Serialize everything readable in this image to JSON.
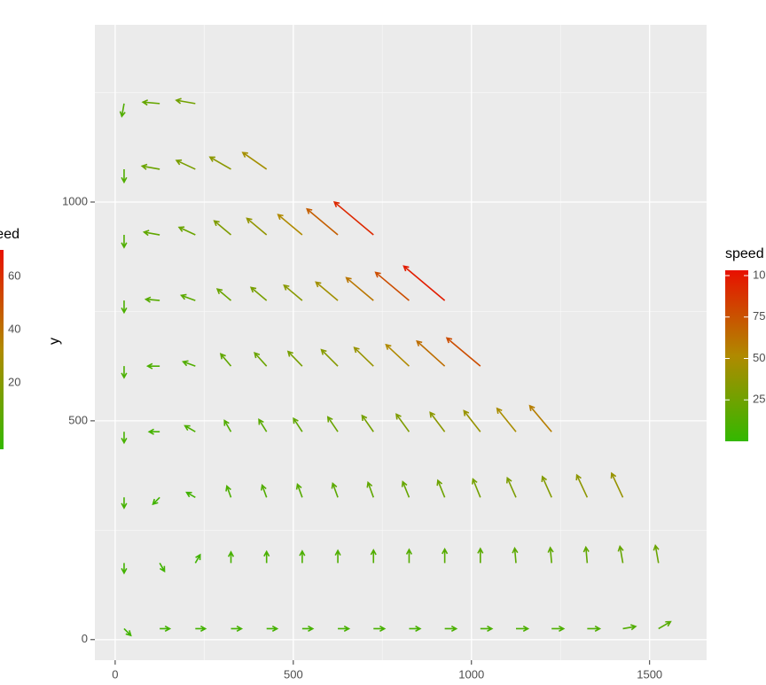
{
  "chart_data": {
    "type": "vector",
    "y_label": "y",
    "xlim": [
      -57,
      1660
    ],
    "ylim": [
      -47,
      1405
    ],
    "xticks": [
      0,
      500,
      1000,
      1500
    ],
    "yticks": [
      0,
      500,
      1000
    ],
    "x_minor_breaks": [
      250,
      750,
      1250
    ],
    "y_minor_breaks": [
      250,
      750,
      1250
    ],
    "grid": true,
    "x": [
      25,
      125,
      225,
      325,
      425,
      525,
      625,
      725,
      825,
      925,
      1025,
      1125,
      1225,
      1325,
      1425,
      1525,
      25,
      125,
      225,
      325,
      425,
      525,
      625,
      725,
      825,
      925,
      1025,
      1125,
      1225,
      1325,
      1425,
      1525,
      25,
      125,
      225,
      325,
      425,
      525,
      625,
      725,
      825,
      925,
      1025,
      1125,
      1225,
      1325,
      1425,
      25,
      125,
      225,
      325,
      425,
      525,
      625,
      725,
      825,
      925,
      1025,
      1125,
      1225,
      25,
      125,
      225,
      325,
      425,
      525,
      625,
      725,
      825,
      925,
      1025,
      25,
      125,
      225,
      325,
      425,
      525,
      625,
      725,
      825,
      925,
      25,
      125,
      225,
      325,
      425,
      525,
      625,
      725,
      25,
      125,
      225,
      325,
      425,
      25,
      125,
      225
    ],
    "y": [
      25,
      25,
      25,
      25,
      25,
      25,
      25,
      25,
      25,
      25,
      25,
      25,
      25,
      25,
      25,
      25,
      175,
      175,
      175,
      175,
      175,
      175,
      175,
      175,
      175,
      175,
      175,
      175,
      175,
      175,
      175,
      175,
      325,
      325,
      325,
      325,
      325,
      325,
      325,
      325,
      325,
      325,
      325,
      325,
      325,
      325,
      325,
      475,
      475,
      475,
      475,
      475,
      475,
      475,
      475,
      475,
      475,
      475,
      475,
      475,
      625,
      625,
      625,
      625,
      625,
      625,
      625,
      625,
      625,
      625,
      625,
      775,
      775,
      775,
      775,
      775,
      775,
      775,
      775,
      775,
      775,
      925,
      925,
      925,
      925,
      925,
      925,
      925,
      925,
      1075,
      1075,
      1075,
      1075,
      1075,
      1225,
      1225,
      1225
    ],
    "angle": [
      -45,
      0,
      0,
      0,
      0,
      0,
      0,
      0,
      0,
      0,
      0,
      0,
      0,
      0,
      10,
      30,
      -90,
      -60,
      60,
      90,
      90,
      90,
      90,
      90,
      90,
      90,
      90,
      95,
      95,
      95,
      100,
      100,
      -90,
      -135,
      150,
      110,
      110,
      110,
      110,
      110,
      112,
      112,
      112,
      114,
      114,
      115,
      115,
      -90,
      180,
      150,
      120,
      122,
      123,
      124,
      125,
      126,
      127,
      128,
      129,
      130,
      -90,
      180,
      160,
      130,
      132,
      134,
      135,
      136,
      137,
      138,
      140,
      -90,
      175,
      160,
      140,
      140,
      140,
      140,
      140,
      140,
      140,
      -90,
      170,
      155,
      140,
      140,
      140,
      140,
      140,
      -90,
      170,
      155,
      150,
      145,
      -100,
      175,
      170
    ],
    "speed": [
      5,
      6,
      6,
      7,
      7,
      7,
      8,
      8,
      8,
      9,
      9,
      10,
      10,
      11,
      12,
      14,
      6,
      5,
      5,
      8,
      9,
      10,
      11,
      12,
      13,
      14,
      15,
      16,
      17,
      18,
      20,
      22,
      7,
      5,
      6,
      10,
      12,
      14,
      16,
      18,
      20,
      23,
      26,
      29,
      32,
      36,
      40,
      8,
      7,
      10,
      12,
      15,
      18,
      22,
      26,
      30,
      35,
      40,
      47,
      55,
      9,
      10,
      12,
      18,
      22,
      27,
      33,
      40,
      50,
      62,
      75,
      10,
      14,
      16,
      22,
      27,
      34,
      44,
      58,
      75,
      95,
      11,
      18,
      22,
      30,
      38,
      50,
      68,
      90,
      12,
      22,
      28,
      35,
      45,
      12,
      20,
      25
    ],
    "legend": {
      "title": "speed",
      "lim": [
        0,
        100
      ],
      "ticks": [
        25,
        50,
        75,
        100
      ],
      "colors": [
        "#33b800",
        "#b08a00",
        "#e81000"
      ]
    },
    "left_legend": {
      "title": "speed",
      "ticks": [
        20,
        40,
        60
      ]
    }
  }
}
